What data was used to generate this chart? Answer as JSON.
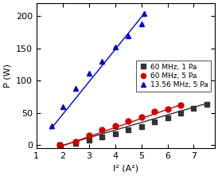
{
  "title": "",
  "xlabel": "I² (A²)",
  "ylabel": "P (W)",
  "xlim": [
    1.5,
    7.8
  ],
  "ylim": [
    -5,
    220
  ],
  "xticks": [
    1,
    2,
    3,
    4,
    5,
    6,
    7
  ],
  "yticks": [
    0,
    50,
    100,
    150,
    200
  ],
  "series": [
    {
      "label": "60 MHz, 1 Pa",
      "color": "#333333",
      "marker": "s",
      "x": [
        1.9,
        2.5,
        3.0,
        3.5,
        4.0,
        4.5,
        5.0,
        5.5,
        6.0,
        6.5,
        7.0,
        7.5
      ],
      "y": [
        0,
        3,
        8,
        13,
        18,
        24,
        29,
        36,
        42,
        50,
        57,
        64
      ],
      "fit_x": [
        1.85,
        7.6
      ],
      "fit_y": [
        -2,
        66
      ]
    },
    {
      "label": "60 MHz, 5 Pa",
      "color": "#cc0000",
      "marker": "o",
      "x": [
        1.9,
        2.5,
        3.0,
        3.5,
        4.0,
        4.5,
        5.0,
        5.5,
        6.0,
        6.5
      ],
      "y": [
        0,
        5,
        15,
        24,
        30,
        37,
        44,
        52,
        56,
        62
      ],
      "fit_x": [
        1.85,
        6.6
      ],
      "fit_y": [
        -3,
        64
      ]
    },
    {
      "label": "13.56 MHz, 5 Pa",
      "color": "#0000cc",
      "marker": "^",
      "x": [
        1.6,
        2.0,
        2.5,
        3.0,
        3.5,
        4.0,
        4.5,
        5.0,
        5.1
      ],
      "y": [
        30,
        60,
        88,
        112,
        130,
        152,
        170,
        188,
        204
      ],
      "fit_x": [
        1.55,
        5.15
      ],
      "fit_y": [
        25,
        206
      ]
    }
  ],
  "legend_loc": "center right",
  "bg_color": "#ffffff",
  "marker_size": 5,
  "linewidth": 1.0,
  "fontsize": 8,
  "tick_fontsize": 8
}
